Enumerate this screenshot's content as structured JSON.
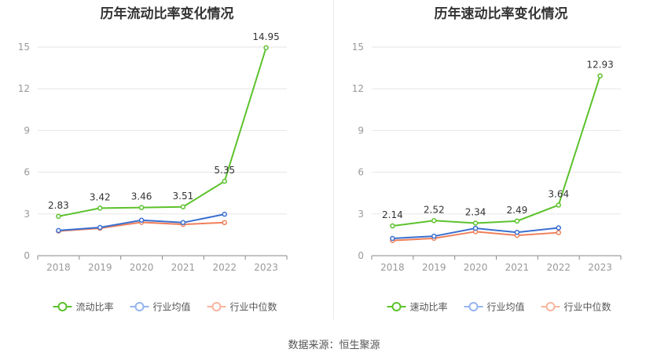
{
  "source_label": "数据来源：恒生聚源",
  "colors": {
    "primary": "#5cc22c",
    "industry_avg": "#3a6fd0",
    "industry_median": "#ef7f5a",
    "legend_avg": "#95b4ef",
    "legend_median": "#f7b59e",
    "axis": "#999999",
    "grid": "#e6e6e6"
  },
  "chart_data": [
    {
      "type": "line",
      "title": "历年流动比率变化情况",
      "categories": [
        "2018",
        "2019",
        "2020",
        "2021",
        "2022",
        "2023"
      ],
      "ylim": [
        0,
        15
      ],
      "yticks": [
        "0",
        "3",
        "6",
        "9",
        "12",
        "15"
      ],
      "grid": true,
      "legend": "bottom",
      "series": [
        {
          "name": "流动比率",
          "values": [
            2.83,
            3.42,
            3.46,
            3.51,
            5.35,
            14.95
          ],
          "labels": [
            "2.83",
            "3.42",
            "3.46",
            "3.51",
            "5.35",
            "14.95"
          ]
        },
        {
          "name": "行业均值",
          "values": [
            1.81,
            2.03,
            2.55,
            2.38,
            2.98,
            null
          ]
        },
        {
          "name": "行业中位数",
          "values": [
            1.77,
            1.97,
            2.4,
            2.25,
            2.38,
            null
          ]
        }
      ]
    },
    {
      "type": "line",
      "title": "历年速动比率变化情况",
      "categories": [
        "2018",
        "2019",
        "2020",
        "2021",
        "2022",
        "2023"
      ],
      "ylim": [
        0,
        15
      ],
      "yticks": [
        "0",
        "3",
        "6",
        "9",
        "12",
        "15"
      ],
      "grid": true,
      "legend": "bottom",
      "series": [
        {
          "name": "速动比率",
          "values": [
            2.14,
            2.52,
            2.34,
            2.49,
            3.64,
            12.93
          ],
          "labels": [
            "2.14",
            "2.52",
            "2.34",
            "2.49",
            "3.64",
            "12.93"
          ]
        },
        {
          "name": "行业均值",
          "values": [
            1.24,
            1.4,
            1.97,
            1.68,
            2.0,
            null
          ]
        },
        {
          "name": "行业中位数",
          "values": [
            1.09,
            1.25,
            1.73,
            1.46,
            1.66,
            null
          ]
        }
      ]
    }
  ]
}
